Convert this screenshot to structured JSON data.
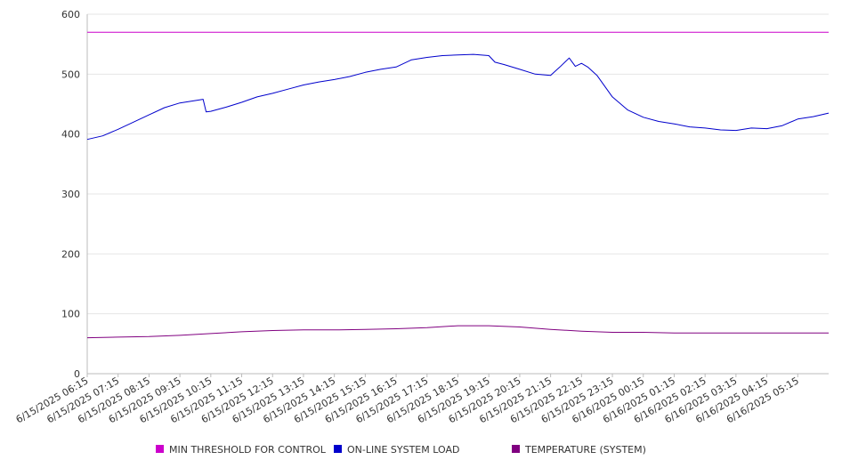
{
  "chart_data": {
    "type": "line",
    "title": "",
    "xlabel": "",
    "ylabel": "",
    "ylim": [
      0,
      600
    ],
    "yticks": [
      0,
      100,
      200,
      300,
      400,
      500,
      600
    ],
    "grid": true,
    "legend_position": "bottom",
    "categories": [
      "6/15/2025 06:15",
      "6/15/2025 07:15",
      "6/15/2025 08:15",
      "6/15/2025 09:15",
      "6/15/2025 10:15",
      "6/15/2025 11:15",
      "6/15/2025 12:15",
      "6/15/2025 13:15",
      "6/15/2025 14:15",
      "6/15/2025 15:15",
      "6/15/2025 16:15",
      "6/15/2025 17:15",
      "6/15/2025 18:15",
      "6/15/2025 19:15",
      "6/15/2025 20:15",
      "6/15/2025 21:15",
      "6/15/2025 22:15",
      "6/15/2025 23:15",
      "6/16/2025 00:15",
      "6/16/2025 01:15",
      "6/16/2025 02:15",
      "6/16/2025 03:15",
      "6/16/2025 04:15",
      "6/16/2025 05:15"
    ],
    "series": [
      {
        "name": "MIN THRESHOLD FOR CONTROL",
        "color": "#cc00cc",
        "x": [
          0,
          24
        ],
        "values": [
          570,
          570
        ]
      },
      {
        "name": "ON-LINE SYSTEM LOAD",
        "color": "#0000cc",
        "x": [
          0,
          0.5,
          1,
          1.5,
          2,
          2.5,
          3,
          3.5,
          3.75,
          3.85,
          4,
          4.5,
          5,
          5.5,
          6,
          6.5,
          7,
          7.5,
          8,
          8.5,
          9,
          9.5,
          10,
          10.5,
          11,
          11.5,
          12,
          12.5,
          13,
          13.2,
          13.5,
          14,
          14.5,
          15,
          15.3,
          15.6,
          15.8,
          16,
          16.2,
          16.5,
          17,
          17.5,
          18,
          18.5,
          19,
          19.5,
          20,
          20.5,
          21,
          21.5,
          22,
          22.5,
          23,
          23.5,
          24
        ],
        "values": [
          391,
          397,
          408,
          420,
          432,
          444,
          452,
          456,
          458,
          437,
          438,
          445,
          453,
          462,
          468,
          475,
          482,
          487,
          491,
          496,
          503,
          508,
          512,
          524,
          528,
          531,
          532,
          533,
          531,
          520,
          516,
          508,
          500,
          498,
          512,
          527,
          513,
          518,
          512,
          498,
          462,
          440,
          428,
          421,
          417,
          412,
          410,
          407,
          406,
          410,
          409,
          414,
          425,
          429,
          435
        ]
      },
      {
        "name": "TEMPERATURE (SYSTEM)",
        "color": "#800080",
        "x": [
          0,
          1,
          2,
          3,
          4,
          5,
          6,
          7,
          8,
          9,
          10,
          11,
          12,
          13,
          14,
          15,
          16,
          17,
          18,
          19,
          20,
          21,
          22,
          23,
          24
        ],
        "values": [
          60,
          61,
          62,
          64,
          67,
          70,
          72,
          73,
          73,
          74,
          75,
          77,
          80,
          80,
          78,
          74,
          71,
          69,
          69,
          68,
          68,
          68,
          68,
          68,
          68
        ]
      }
    ]
  }
}
